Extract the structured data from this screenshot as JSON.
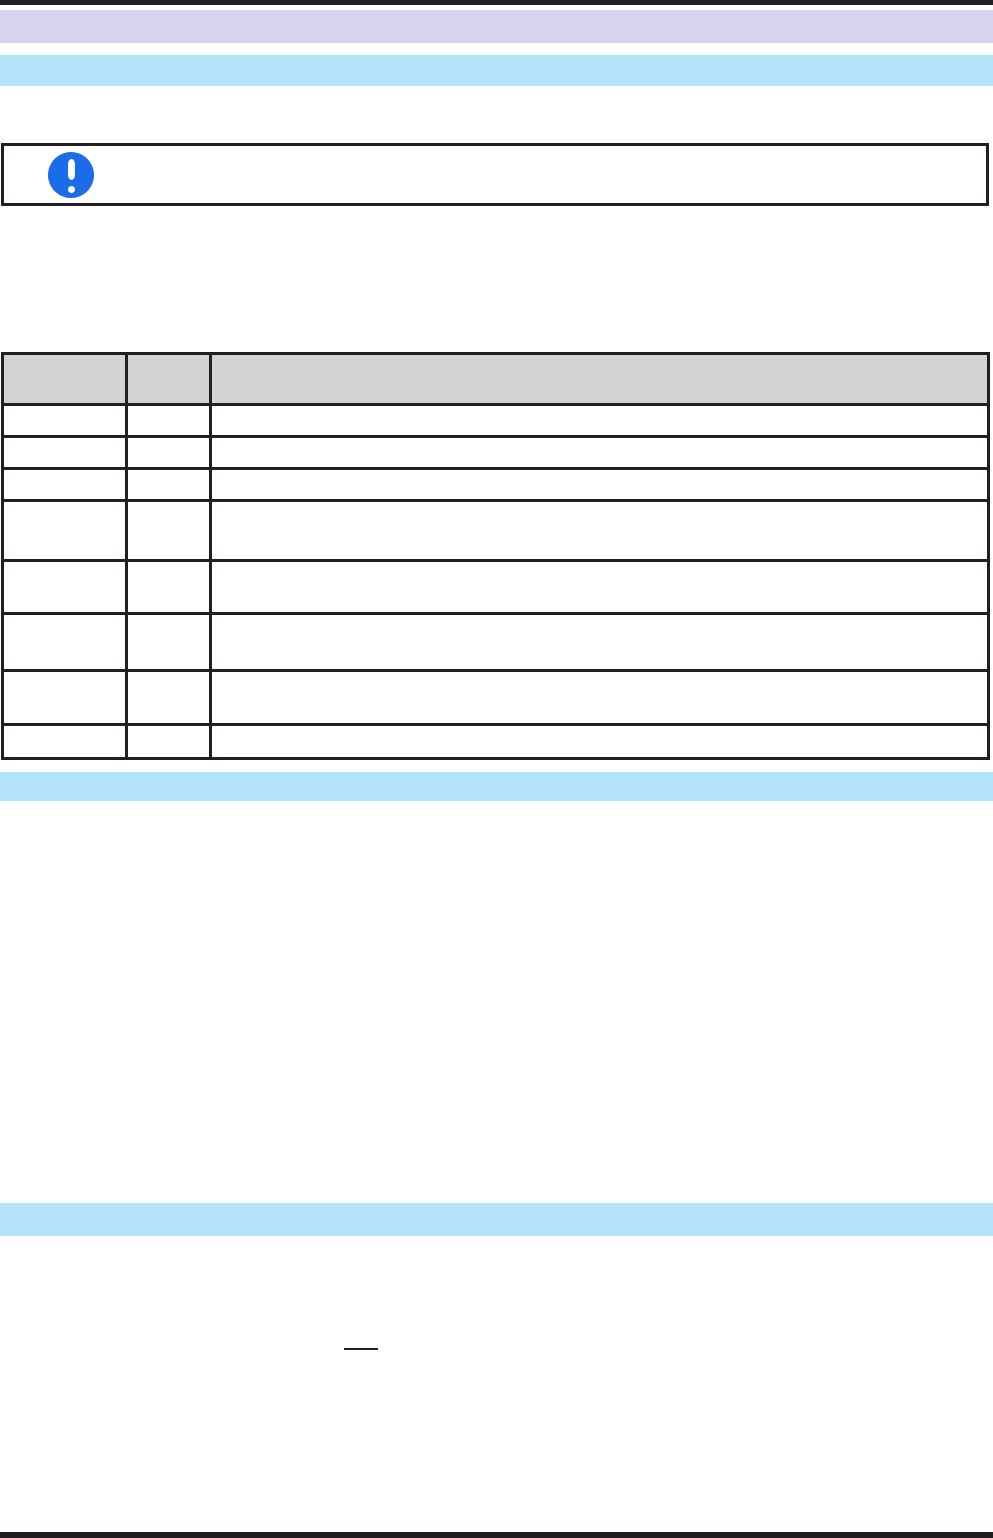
{
  "page": {
    "kind": "document-page",
    "background_color": "#ffffff",
    "rule_color": "#231f20"
  },
  "header_bar": {
    "label": "",
    "color": "#d5d3ee"
  },
  "sections": [
    {
      "label": "",
      "color": "#b2e3f8"
    },
    {
      "label": "",
      "color": "#b2e3f8"
    },
    {
      "label": "",
      "color": "#b2e3f8"
    }
  ],
  "notice": {
    "icon": "exclamation-circle-icon",
    "icon_color": "#1a6cea",
    "border_color": "#231f20",
    "text": ""
  },
  "table": {
    "header_bg": "#d3d3d3",
    "border_color": "#231f20",
    "columns": [
      {
        "label": ""
      },
      {
        "label": ""
      },
      {
        "label": ""
      }
    ],
    "rows": [
      {
        "cells": [
          "",
          "",
          ""
        ]
      },
      {
        "cells": [
          "",
          "",
          ""
        ]
      },
      {
        "cells": [
          "",
          "",
          ""
        ]
      },
      {
        "cells": [
          "",
          "",
          ""
        ]
      },
      {
        "cells": [
          "",
          "",
          ""
        ]
      },
      {
        "cells": [
          "",
          "",
          ""
        ]
      },
      {
        "cells": [
          "",
          "",
          ""
        ]
      },
      {
        "cells": [
          "",
          "",
          ""
        ]
      }
    ]
  },
  "link": {
    "text": "",
    "underline_color": "#231f20"
  }
}
